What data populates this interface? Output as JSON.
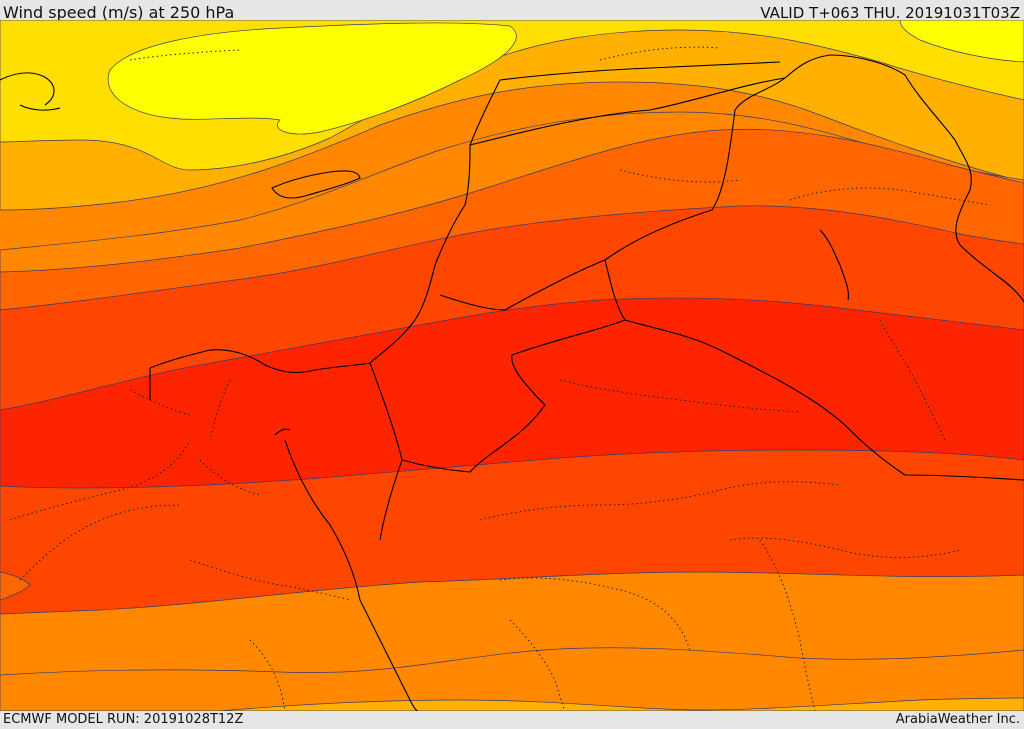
{
  "header": {
    "title": "Wind speed (m/s) at 250 hPa",
    "valid_time": "VALID T+063 THU. 20191031T03Z"
  },
  "footer": {
    "model_run": "ECMWF MODEL RUN: 20191028T12Z",
    "credit": "ArabiaWeather Inc."
  },
  "map": {
    "region": "Eastern Mediterranean and Middle East",
    "colors": {
      "band1": "#ffff00",
      "band2": "#ffdf00",
      "band3": "#ffb000",
      "band4": "#ff8800",
      "band5": "#ff6600",
      "band6": "#ff4600",
      "band7": "#ff2400",
      "contour": "#3a3a6a",
      "border": "#000000"
    }
  }
}
